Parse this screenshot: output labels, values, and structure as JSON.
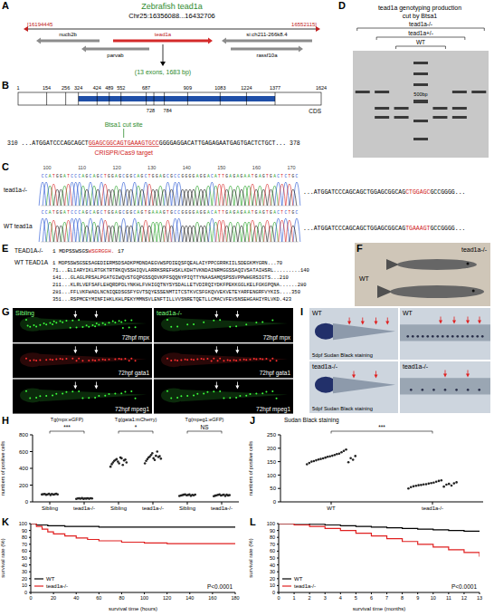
{
  "panels": [
    {
      "letter": "A",
      "title": "Zebrafish tead1a",
      "locus": "Chr25:16356088...16432706",
      "range_start": "[16194445",
      "range_end": "16552115]",
      "genes_upper": [
        "nucb2b",
        "tead1a",
        "si:ch211-266k8.4"
      ],
      "genes_lower": [
        "parvab",
        "rassf10a"
      ],
      "summary": "(13 exons, 1683 bp)"
    },
    {
      "letter": "B",
      "boundaries_top": [
        1,
        154,
        256,
        324,
        424,
        489,
        552,
        687,
        909,
        1083,
        1224,
        1377,
        1624
      ],
      "boundaries_bottom": [
        728,
        784
      ],
      "cds": "CDS",
      "cut_site": "Btsa1 cut site",
      "target_label": "CRISPR/Cas9 target",
      "seq_start": "310",
      "seq_before": "...ATGGATCCCAGCAGCT",
      "seq_target": "GGAGCGGCAGTGAAAGTGCC",
      "seq_after": "GGGGAGGACATTGAGAGAATGAGTGACTCTGCT...",
      "seq_end": "378"
    },
    {
      "letter": "C",
      "ticks": [
        100,
        110,
        120,
        130,
        140,
        150,
        160,
        170
      ],
      "rows": [
        {
          "label": "tead1a-/-",
          "calls": "CCATGGATCCCAGCAGCTGGAGCGGCAGCTGGAGCGCCGGGGAGGACATTGAGAGAATGAGTGACTCTGC",
          "seq_before": "...ATGGATCCCAGCAGCTGGAGCGGCAG",
          "seq_changed": "CTGGAGC",
          "seq_after": "GCCGGGG..."
        },
        {
          "label": "WT tead1a",
          "calls": "CCATGGATCCCAGCAGCTGGAGCGGCAGTGAAAGTGCCGGGGAGGACATTGAGAGAATGAGTGACTCTGC",
          "seq_before": "...ATGGATCCCAGCAGCTGGAGCGGCAG",
          "seq_changed": "TGAAAGT",
          "seq_after": "GCCGGGG..."
        }
      ]
    },
    {
      "letter": "D",
      "title": [
        "tead1a genotyping production",
        "cut by Btsa1"
      ],
      "lanes": [
        "tead1a-/-",
        "tead1a+/-",
        "WT"
      ],
      "marker": "500bp"
    },
    {
      "letter": "E",
      "mut_name": "TEAD1A-/-",
      "mut_start": "1",
      "mut_seq": "MDPSSWSGS",
      "mut_changed": "WSGRGGH.",
      "mut_end": "17",
      "wt_name": "WT TEAD1A",
      "wt_lines": [
        "1 MDPSSWSGSESAGEDIERMSDSADKPMDNDAEGVWSPDIEQSFQEALAIYPPCGRRKIILSDEGKMYGRN...70",
        "71...ELIARYIKLRTGKTRTRKQVSSHIQVLARRKSREFHSKLKDHTVKNDAINRMGGSSAQIVSATAIHSRL.........140",
        "141...GLAGLPRSALPGATGIWQVSTGQPGSSQDVKPFSQQNYPIQTTYNAASAMQSPSSVPPWHGRSIGTS...210",
        "211...KLRLVEFSAFLEHQRDPDLYNKHLFVHIGQTNYSYSDALLETVDIRQIYDKFPEKKGGLKELFGKGPQNA......280",
        "281...FFLVKFWADLNCNIQEDSGSFYGVTSQYESSENMTITCSTKVCSFGKQVVEKVETEYARFENGRFVYKIS....350",
        "351...RSPMCEYMINFIHKLKHLPEKYMMNSVLENFTILLVVSNRETQETLLCMACVFEVSNSEHGAHIYRLVKD.423"
      ]
    },
    {
      "letter": "F",
      "labels": [
        "tead1a-/-",
        "WT"
      ]
    },
    {
      "letter": "G",
      "columns": [
        "Sibling",
        "tead1a-/-"
      ],
      "rows": [
        "72hpf mpx",
        "72hpf gata1",
        "72hpf mpeg1"
      ]
    },
    {
      "letter": "I",
      "labels": [
        "WT",
        "WT",
        "tead1a-/-",
        "tead1a-/-"
      ],
      "caption": "5dpf Sudan Black staining"
    }
  ],
  "chart_data": [
    {
      "panel": "H",
      "type": "scatter",
      "ylabel": "numbers of positive cells",
      "categories": [
        "Sibling",
        "tead1a-/-",
        "Sibling",
        "tead1a-/-",
        "Sibling",
        "tead1a-/-"
      ],
      "color": "#222222",
      "ylim": [
        0,
        800
      ],
      "yticks": [
        0,
        200,
        400,
        600,
        800
      ],
      "series": [
        {
          "name": "Tg(mpx:eGFP)",
          "annotation": "***",
          "values": [
            [
              88,
              92,
              95,
              85,
              90,
              98,
              82,
              94,
              87,
              91,
              96,
              89
            ],
            [
              35,
              40,
              42,
              38,
              45,
              36,
              41,
              39,
              44,
              37,
              43,
              40
            ],
            null,
            null,
            null,
            null
          ]
        },
        {
          "name": "Tg(gata1:mCherry)",
          "annotation": "*",
          "values": [
            null,
            null,
            [
              420,
              450,
              470,
              490,
              500,
              510,
              480,
              460,
              530,
              520,
              440,
              495,
              505,
              470
            ],
            [
              460,
              490,
              510,
              530,
              540,
              560,
              580,
              520,
              500,
              550,
              600,
              535,
              545,
              515
            ],
            null,
            null
          ]
        },
        {
          "name": "Tg(mpeg1:eGFP)",
          "annotation": "NS",
          "values": [
            null,
            null,
            null,
            null,
            [
              70,
              75,
              80,
              85,
              90,
              78,
              82,
              88,
              72,
              84,
              79,
              86
            ],
            [
              68,
              74,
              79,
              83,
              88,
              76,
              81,
              87,
              71,
              85,
              77,
              80
            ]
          ]
        }
      ]
    },
    {
      "panel": "J",
      "type": "scatter",
      "title": "Sudan Black staining",
      "ylabel": "numbers of positive cells",
      "categories": [
        "WT",
        "tead1a-/-"
      ],
      "color": "#222222",
      "ylim": [
        0,
        250
      ],
      "yticks": [
        0,
        50,
        100,
        150,
        200,
        250
      ],
      "annotation": "***",
      "values": [
        [
          140,
          145,
          150,
          152,
          155,
          158,
          160,
          162,
          165,
          168,
          170,
          172,
          175,
          178,
          180,
          185,
          190,
          195,
          148,
          163,
          157,
          171
        ],
        [
          50,
          55,
          58,
          60,
          62,
          63,
          65,
          66,
          68,
          70,
          72,
          75,
          78,
          80,
          57,
          64,
          67,
          61,
          69,
          73
        ]
      ]
    },
    {
      "panel": "K",
      "type": "line",
      "line_style": "step",
      "xlabel": "survival time (hours)",
      "ylabel": "survival rate (%)",
      "xlim": [
        0,
        180
      ],
      "xticks": [
        0,
        20,
        40,
        60,
        80,
        100,
        120,
        140,
        160,
        180
      ],
      "ylim": [
        0,
        100
      ],
      "yticks": [
        0,
        10,
        20,
        30,
        40,
        50,
        60,
        70,
        80,
        90,
        100
      ],
      "legend": "lower left",
      "annotation": "P<0.0001",
      "series": [
        {
          "name": "WT",
          "color": "#000000",
          "x": [
            0,
            5,
            15,
            30,
            60,
            180
          ],
          "values": [
            100,
            98,
            97,
            96,
            95,
            95
          ]
        },
        {
          "name": "tead1a-/-",
          "color": "#e02020",
          "x": [
            0,
            5,
            10,
            15,
            20,
            30,
            40,
            50,
            60,
            80,
            100,
            120,
            180
          ],
          "values": [
            100,
            96,
            92,
            88,
            85,
            82,
            79,
            77,
            75,
            73,
            72,
            71,
            71
          ]
        }
      ]
    },
    {
      "panel": "L",
      "type": "line",
      "line_style": "step",
      "xlabel": "survival time (months)",
      "ylabel": "survival rate (%)",
      "xlim": [
        0,
        13
      ],
      "xticks": [
        0,
        1,
        2,
        3,
        4,
        5,
        6,
        7,
        8,
        9,
        10,
        11,
        12,
        13
      ],
      "ylim": [
        0,
        100
      ],
      "yticks": [
        0,
        10,
        20,
        30,
        40,
        50,
        60,
        70,
        80,
        90,
        100
      ],
      "legend": "lower left",
      "annotation": "P<0.0001",
      "series": [
        {
          "name": "WT",
          "color": "#000000",
          "x": [
            0,
            1,
            2,
            3,
            4,
            5,
            6,
            7,
            8,
            9,
            10,
            11,
            12,
            13
          ],
          "values": [
            100,
            100,
            99,
            98,
            97,
            96,
            95,
            94,
            93,
            92,
            91,
            90,
            89,
            88
          ]
        },
        {
          "name": "tead1a-/-",
          "color": "#e02020",
          "x": [
            0,
            1,
            2,
            3,
            4,
            5,
            6,
            7,
            8,
            9,
            10,
            11,
            12,
            13
          ],
          "values": [
            100,
            98,
            96,
            93,
            90,
            86,
            82,
            78,
            74,
            70,
            66,
            62,
            58,
            52
          ]
        }
      ]
    }
  ]
}
